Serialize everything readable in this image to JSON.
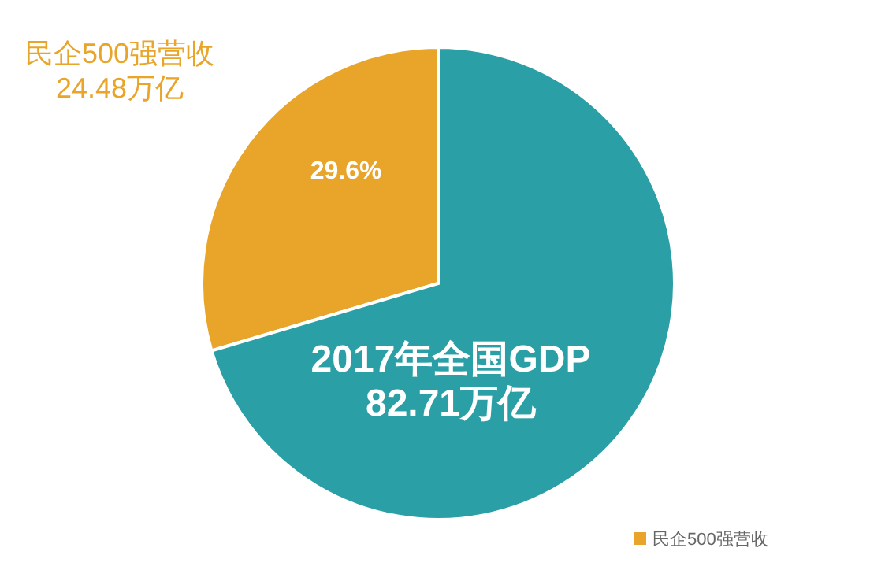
{
  "chart_data": {
    "type": "pie",
    "categories": [
      "民企500强营收",
      null
    ],
    "values": [
      29.6,
      70.4
    ],
    "colors": [
      "#e8a52a",
      "#2a9fa6"
    ],
    "value_labels": [
      "29.6%",
      null
    ],
    "annotations": [
      "24.48万亿",
      "2017年全国GDP\n82.71万亿"
    ],
    "legend": "bottom right"
  }
}
